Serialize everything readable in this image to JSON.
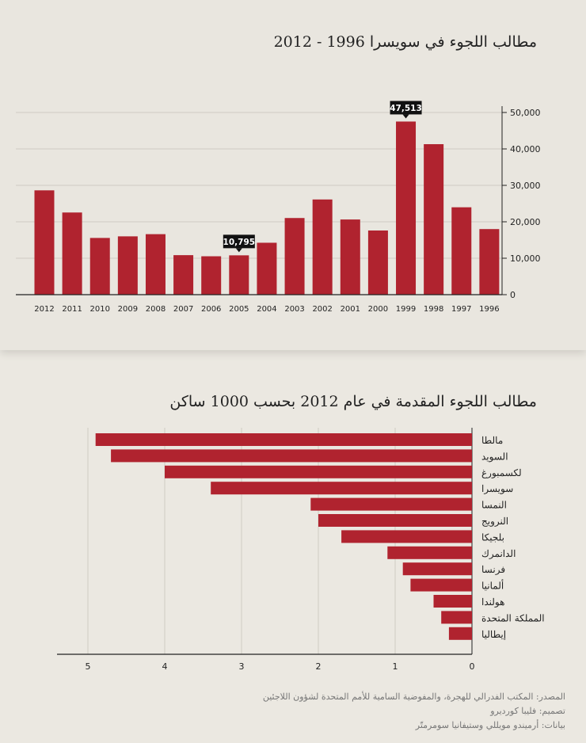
{
  "bar_color": "#b0232f",
  "footer": {
    "source": "المصدر: المكتب الفدرالي للهجرة، والمفوضية السامية للأمم المتحدة لشؤون اللاجئين",
    "design": "تصميم: فليبا كورديرو",
    "data": "بيانات: أرميندو مويللي وستيفانيا سومرمتّر"
  },
  "chart_data": [
    {
      "type": "bar",
      "title": "مطالب اللجوء في سويسرا 1996 - 2012",
      "categories": [
        "2012",
        "2011",
        "2010",
        "2009",
        "2008",
        "2007",
        "2006",
        "2005",
        "2004",
        "2003",
        "2002",
        "2001",
        "2000",
        "1999",
        "1998",
        "1997",
        "1996"
      ],
      "values": [
        28631,
        22551,
        15567,
        16005,
        16606,
        10844,
        10537,
        10795,
        14248,
        21037,
        26125,
        20633,
        17611,
        47513,
        41302,
        23982,
        18001
      ],
      "ylim": [
        0,
        50000
      ],
      "yticks": [
        0,
        10000,
        20000,
        30000,
        40000,
        50000
      ],
      "ytick_labels": [
        "0",
        "10,000",
        "20,000",
        "30,000",
        "40,000",
        "50,000"
      ],
      "annotations": [
        {
          "category": "1999",
          "label": "47,513"
        },
        {
          "category": "2005",
          "label": "10,795"
        }
      ],
      "grid": true
    },
    {
      "type": "bar",
      "orientation": "horizontal",
      "title": "مطالب اللجوء المقدمة في عام 2012 بحسب 1000 ساكن",
      "categories": [
        "مالطا",
        "السويد",
        "لكسمبورغ",
        "سويسرا",
        "النمسا",
        "النرويج",
        "بلجيكا",
        "الدانمرك",
        "فرنسا",
        "ألمانيا",
        "هولندا",
        "المملكة المتحدة",
        "إيطاليا"
      ],
      "values": [
        4.9,
        4.7,
        4.0,
        3.4,
        2.1,
        2.0,
        1.7,
        1.1,
        0.9,
        0.8,
        0.5,
        0.4,
        0.3
      ],
      "xlim": [
        0,
        5.5
      ],
      "xticks": [
        0,
        1,
        2,
        3,
        4,
        5
      ],
      "xtick_labels": [
        "0",
        "1",
        "2",
        "3",
        "4",
        "5"
      ],
      "grid": true
    }
  ]
}
